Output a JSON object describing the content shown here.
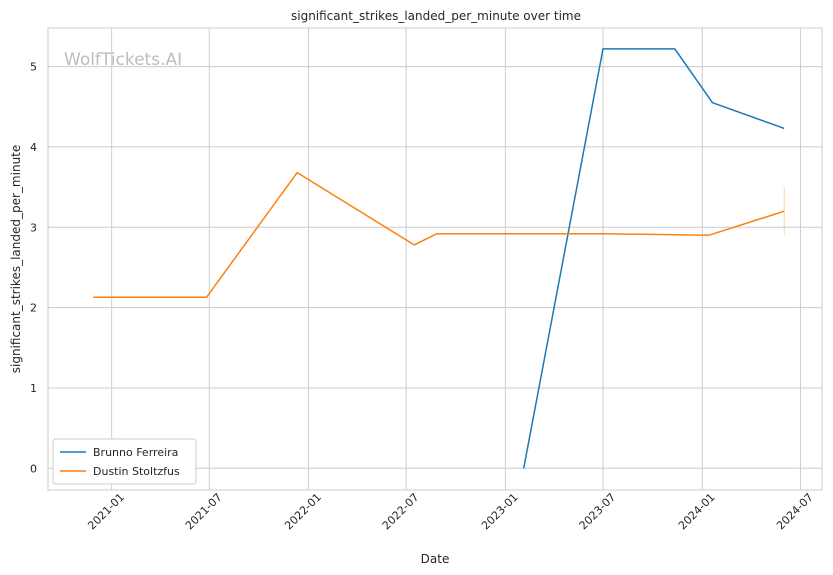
{
  "chart_data": {
    "type": "line",
    "title": "significant_strikes_landed_per_minute over time",
    "xlabel": "Date",
    "ylabel": "significant_strikes_landed_per_minute",
    "watermark": "WolfTickets.AI",
    "xlim": [
      "2020-09-05",
      "2024-08-10"
    ],
    "ylim": [
      -0.27,
      5.48
    ],
    "x_ticks": [
      "2021-01",
      "2021-07",
      "2022-01",
      "2022-07",
      "2023-01",
      "2023-07",
      "2024-01",
      "2024-07"
    ],
    "y_ticks": [
      0,
      1,
      2,
      3,
      4,
      5
    ],
    "grid": true,
    "legend_position": "lower-left",
    "series": [
      {
        "name": "Brunno Ferreira",
        "color": "#1f77b4",
        "points": [
          {
            "x": "2023-02-04",
            "y": 0.0
          },
          {
            "x": "2023-07-01",
            "y": 5.22
          },
          {
            "x": "2023-11-11",
            "y": 5.22
          },
          {
            "x": "2024-01-20",
            "y": 4.55
          },
          {
            "x": "2024-06-01",
            "y": 4.23
          }
        ]
      },
      {
        "name": "Dustin Stoltzfus",
        "color": "#ff7f0e",
        "points": [
          {
            "x": "2020-11-28",
            "y": 2.13
          },
          {
            "x": "2021-06-26",
            "y": 2.13
          },
          {
            "x": "2021-12-11",
            "y": 3.68
          },
          {
            "x": "2022-07-16",
            "y": 2.78
          },
          {
            "x": "2022-08-27",
            "y": 2.92
          },
          {
            "x": "2023-07-01",
            "y": 2.92
          },
          {
            "x": "2024-01-13",
            "y": 2.9
          },
          {
            "x": "2024-06-01",
            "y": 3.2
          }
        ],
        "error_bar": {
          "x": "2024-06-01",
          "low": 2.9,
          "high": 3.5
        }
      }
    ]
  }
}
